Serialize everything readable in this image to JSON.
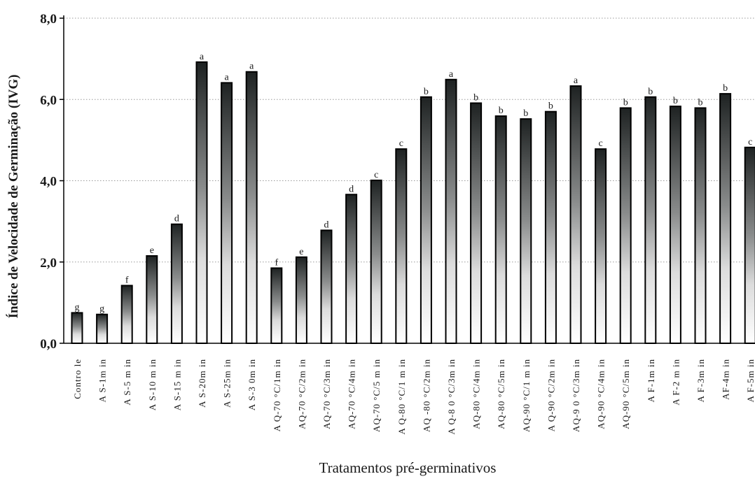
{
  "chart_data": {
    "type": "bar",
    "xlabel": "Tratamentos pré-germinativos",
    "ylabel": "Índice de Velocidade de Germinação (IVG)",
    "ylim": [
      0,
      8
    ],
    "yticks": [
      0,
      2,
      4,
      6,
      8
    ],
    "ytick_labels": [
      "0,0",
      "2,0",
      "4,0",
      "6,0",
      "8,0"
    ],
    "grid": true,
    "categories": [
      "Contro le",
      "A S-1m in",
      "A S-5 m in",
      "A S-10 m in",
      "A S-15 m in",
      "A S-20m in",
      "A S-25m in",
      "A S-3 0m in",
      "A Q-70 °C/1m in",
      "AQ-70 °C/2m in",
      "AQ-70 °C/3m in",
      "AQ-70 °C/4m in",
      "AQ-70 °C/5 m in",
      "A Q-80 °C/1 m in",
      "AQ -80 °C/2m in",
      "A Q-8 0 °C/3m in",
      "AQ-80 °C/4m in",
      "AQ-80 °C/5m in",
      "AQ-90 °C/1 m in",
      "A Q-90 °C/2m in",
      "AQ-9 0 °C/3m in",
      "AQ-90 °C/4m in",
      "AQ-90 °C/5m in",
      "A F-1m in",
      "A F-2 m in",
      "A F-3m in",
      "AF-4m in",
      "A F-5m in"
    ],
    "values": [
      0.75,
      0.71,
      1.42,
      2.15,
      2.93,
      6.92,
      6.41,
      6.68,
      1.85,
      2.12,
      2.78,
      3.66,
      4.01,
      4.78,
      6.06,
      6.49,
      5.91,
      5.59,
      5.52,
      5.7,
      6.33,
      4.78,
      5.79,
      6.06,
      5.83,
      5.79,
      6.14,
      4.82
    ],
    "significance": [
      "g",
      "g",
      "f",
      "e",
      "d",
      "a",
      "a",
      "a",
      "f",
      "e",
      "d",
      "d",
      "c",
      "c",
      "b",
      "a",
      "b",
      "b",
      "b",
      "b",
      "a",
      "c",
      "b",
      "b",
      "b",
      "b",
      "b",
      "c"
    ],
    "colors": {
      "bar_top": "#1e2222",
      "bar_bottom": "#ffffff",
      "bar_outline": "#000000",
      "grid": "#9a9a9a",
      "axis": "#000000"
    }
  }
}
